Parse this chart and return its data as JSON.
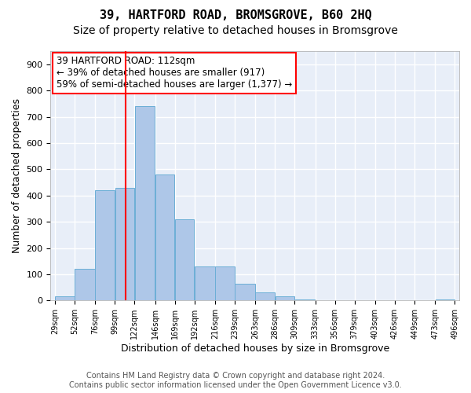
{
  "title": "39, HARTFORD ROAD, BROMSGROVE, B60 2HQ",
  "subtitle": "Size of property relative to detached houses in Bromsgrove",
  "xlabel": "Distribution of detached houses by size in Bromsgrove",
  "ylabel": "Number of detached properties",
  "bin_edges": [
    29,
    52,
    76,
    99,
    122,
    146,
    169,
    192,
    216,
    239,
    263,
    286,
    309,
    333,
    356,
    379,
    403,
    426,
    449,
    473,
    496
  ],
  "bar_heights": [
    15,
    120,
    420,
    430,
    740,
    480,
    310,
    130,
    130,
    65,
    30,
    15,
    5,
    0,
    0,
    0,
    0,
    0,
    0,
    5
  ],
  "bar_color": "#aec7e8",
  "bar_edgecolor": "#6baed6",
  "background_color": "#e8eef8",
  "grid_color": "#ffffff",
  "vline_x": 112,
  "vline_color": "red",
  "annotation_text": "39 HARTFORD ROAD: 112sqm\n← 39% of detached houses are smaller (917)\n59% of semi-detached houses are larger (1,377) →",
  "ylim": [
    0,
    950
  ],
  "yticks": [
    0,
    100,
    200,
    300,
    400,
    500,
    600,
    700,
    800,
    900
  ],
  "footer_line1": "Contains HM Land Registry data © Crown copyright and database right 2024.",
  "footer_line2": "Contains public sector information licensed under the Open Government Licence v3.0.",
  "title_fontsize": 11,
  "subtitle_fontsize": 10,
  "xlabel_fontsize": 9,
  "ylabel_fontsize": 9,
  "annotation_fontsize": 8.5,
  "footer_fontsize": 7
}
